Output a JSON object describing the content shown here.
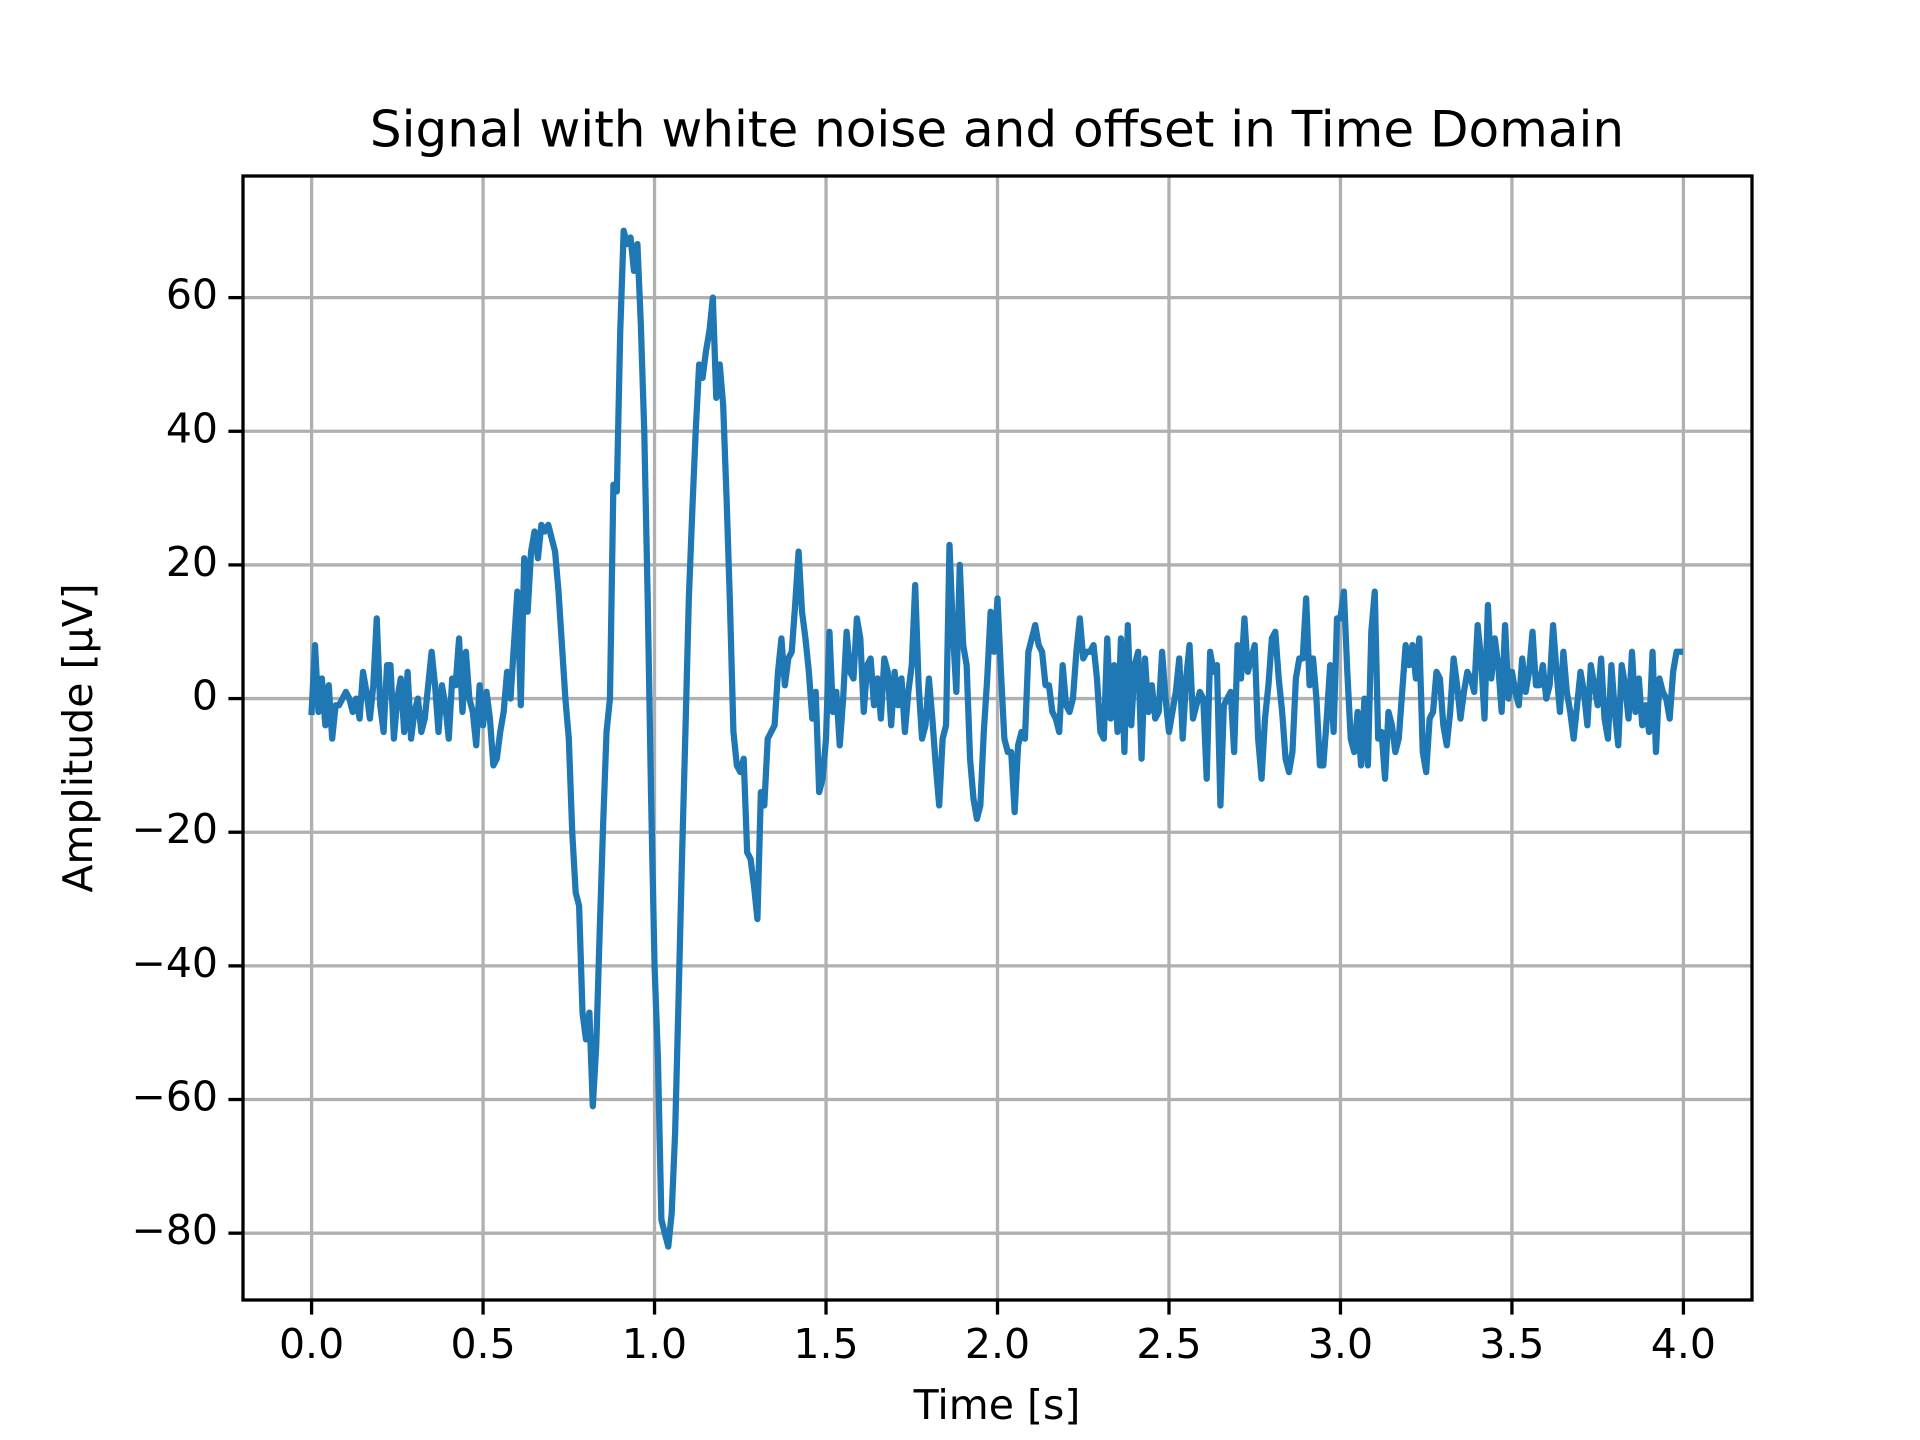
{
  "chart_data": {
    "type": "line",
    "title": "Signal with white noise and offset in Time Domain",
    "xlabel": "Time [s]",
    "ylabel": "Amplitude [μV]",
    "color": "#1f77b4",
    "grid": true,
    "xlim": [
      -0.2,
      4.2
    ],
    "ylim": [
      -90,
      78.2
    ],
    "xticks": [
      {
        "value": 0,
        "label": "0.0"
      },
      0.5,
      {
        "value": 1,
        "label": "1.0"
      },
      1.5,
      {
        "value": 2,
        "label": "2.0"
      },
      2.5,
      {
        "value": 3,
        "label": "3.0"
      },
      3.5,
      {
        "value": 4,
        "label": "4.0"
      }
    ],
    "yticks": [
      {
        "value": -80,
        "label": "−80"
      },
      {
        "value": -60,
        "label": "−60"
      },
      {
        "value": -40,
        "label": "−40"
      },
      {
        "value": -20,
        "label": "−20"
      },
      0,
      20,
      40,
      60
    ],
    "x": [
      0,
      0.01,
      0.02,
      0.03,
      0.04,
      0.05,
      0.06,
      0.07,
      0.08,
      0.09,
      0.1,
      0.11,
      0.12,
      0.13,
      0.14,
      0.15,
      0.16,
      0.17,
      0.18,
      0.19,
      0.2,
      0.21,
      0.22,
      0.23,
      0.24,
      0.25,
      0.26,
      0.27,
      0.28,
      0.29,
      0.3,
      0.31,
      0.32,
      0.33,
      0.34,
      0.35,
      0.36,
      0.37,
      0.38,
      0.39,
      0.4,
      0.41,
      0.42,
      0.43,
      0.44,
      0.45,
      0.46,
      0.47,
      0.48,
      0.49,
      0.5,
      0.51,
      0.52,
      0.53,
      0.54,
      0.55,
      0.56,
      0.57,
      0.58,
      0.59,
      0.6,
      0.61,
      0.62,
      0.63,
      0.64,
      0.65,
      0.66,
      0.67,
      0.68,
      0.69,
      0.7,
      0.71,
      0.72,
      0.73,
      0.74,
      0.75,
      0.76,
      0.77,
      0.78,
      0.79,
      0.8,
      0.81,
      0.82,
      0.83,
      0.84,
      0.85,
      0.86,
      0.87,
      0.88,
      0.89,
      0.9,
      0.91,
      0.92,
      0.93,
      0.94,
      0.95,
      0.96,
      0.97,
      0.98,
      0.99,
      1,
      1.01,
      1.02,
      1.03,
      1.04,
      1.05,
      1.06,
      1.07,
      1.08,
      1.09,
      1.1,
      1.11,
      1.12,
      1.13,
      1.14,
      1.15,
      1.16,
      1.17,
      1.18,
      1.19,
      1.2,
      1.21,
      1.22,
      1.23,
      1.24,
      1.25,
      1.26,
      1.27,
      1.28,
      1.29,
      1.3,
      1.31,
      1.32,
      1.33,
      1.34,
      1.35,
      1.36,
      1.37,
      1.38,
      1.39,
      1.4,
      1.41,
      1.42,
      1.43,
      1.44,
      1.45,
      1.46,
      1.47,
      1.48,
      1.49,
      1.5,
      1.51,
      1.52,
      1.53,
      1.54,
      1.55,
      1.56,
      1.57,
      1.58,
      1.59,
      1.6,
      1.61,
      1.62,
      1.63,
      1.64,
      1.65,
      1.66,
      1.67,
      1.68,
      1.69,
      1.7,
      1.71,
      1.72,
      1.73,
      1.74,
      1.75,
      1.76,
      1.77,
      1.78,
      1.79,
      1.8,
      1.81,
      1.82,
      1.83,
      1.84,
      1.85,
      1.86,
      1.87,
      1.88,
      1.89,
      1.9,
      1.91,
      1.92,
      1.93,
      1.94,
      1.95,
      1.96,
      1.97,
      1.98,
      1.99,
      2,
      2.01,
      2.02,
      2.03,
      2.04,
      2.05,
      2.06,
      2.07,
      2.08,
      2.09,
      2.1,
      2.11,
      2.12,
      2.13,
      2.14,
      2.15,
      2.16,
      2.17,
      2.18,
      2.19,
      2.2,
      2.21,
      2.22,
      2.23,
      2.24,
      2.25,
      2.26,
      2.27,
      2.28,
      2.29,
      2.3,
      2.31,
      2.32,
      2.33,
      2.34,
      2.35,
      2.36,
      2.37,
      2.38,
      2.39,
      2.4,
      2.41,
      2.42,
      2.43,
      2.44,
      2.45,
      2.46,
      2.47,
      2.48,
      2.49,
      2.5,
      2.51,
      2.52,
      2.53,
      2.54,
      2.55,
      2.56,
      2.57,
      2.58,
      2.59,
      2.6,
      2.61,
      2.62,
      2.63,
      2.64,
      2.65,
      2.66,
      2.67,
      2.68,
      2.69,
      2.7,
      2.71,
      2.72,
      2.73,
      2.74,
      2.75,
      2.76,
      2.77,
      2.78,
      2.79,
      2.8,
      2.81,
      2.82,
      2.83,
      2.84,
      2.85,
      2.86,
      2.87,
      2.88,
      2.89,
      2.9,
      2.91,
      2.92,
      2.93,
      2.94,
      2.95,
      2.96,
      2.97,
      2.98,
      2.99,
      3,
      3.01,
      3.02,
      3.03,
      3.04,
      3.05,
      3.06,
      3.07,
      3.08,
      3.09,
      3.1,
      3.11,
      3.12,
      3.13,
      3.14,
      3.15,
      3.16,
      3.17,
      3.18,
      3.19,
      3.2,
      3.21,
      3.22,
      3.23,
      3.24,
      3.25,
      3.26,
      3.27,
      3.28,
      3.29,
      3.3,
      3.31,
      3.32,
      3.33,
      3.34,
      3.35,
      3.36,
      3.37,
      3.38,
      3.39,
      3.4,
      3.41,
      3.42,
      3.43,
      3.44,
      3.45,
      3.46,
      3.47,
      3.48,
      3.49,
      3.5,
      3.51,
      3.52,
      3.53,
      3.54,
      3.55,
      3.56,
      3.57,
      3.58,
      3.59,
      3.6,
      3.61,
      3.62,
      3.63,
      3.64,
      3.65,
      3.66,
      3.67,
      3.68,
      3.69,
      3.7,
      3.71,
      3.72,
      3.73,
      3.74,
      3.75,
      3.76,
      3.77,
      3.78,
      3.79,
      3.8,
      3.81,
      3.82,
      3.83,
      3.84,
      3.85,
      3.86,
      3.87,
      3.88,
      3.89,
      3.9,
      3.91,
      3.92,
      3.93,
      3.94,
      3.95,
      3.96,
      3.97,
      3.98,
      3.99
    ],
    "values": [
      -2,
      8,
      -2,
      3,
      -4,
      2,
      -6,
      -1,
      -1,
      0,
      1,
      0,
      -2,
      0,
      -3,
      4,
      1,
      -3,
      2,
      12,
      -1,
      -5,
      5,
      5,
      -6,
      0,
      3,
      -5,
      4,
      -6,
      -2,
      0,
      -5,
      -3,
      2,
      7,
      2,
      -5,
      2,
      -1,
      -6,
      3,
      2,
      9,
      -2,
      7,
      0,
      -2,
      -7,
      2,
      -4,
      1,
      -3,
      -10,
      -9,
      -5,
      -2,
      4,
      0,
      8,
      16,
      -1,
      21,
      13,
      22,
      25,
      21,
      26,
      25,
      26,
      24,
      22,
      16,
      8,
      0,
      -6,
      -20,
      -29,
      -31,
      -47,
      -51,
      -47,
      -61,
      -52,
      -35,
      -19,
      -5,
      0,
      32,
      31,
      55,
      70,
      68,
      69,
      64,
      68,
      56,
      40,
      15,
      -15,
      -40,
      -54,
      -78,
      -80,
      -82,
      -77,
      -65,
      -45,
      -24,
      -5,
      15,
      28,
      40,
      50,
      48,
      52,
      55,
      60,
      45,
      50,
      44,
      30,
      14,
      -5,
      -10,
      -11,
      -9,
      -23,
      -24,
      -28,
      -33,
      -14,
      -16,
      -6,
      -5,
      -4,
      4,
      9,
      2,
      6,
      7,
      14,
      22,
      13,
      9,
      4,
      -3,
      1,
      -14,
      -12,
      -6,
      10,
      -2,
      1,
      -7,
      0,
      10,
      4,
      3,
      12,
      9,
      -2,
      5,
      6,
      -1,
      3,
      -3,
      6,
      4,
      -4,
      4,
      -1,
      3,
      -5,
      1,
      5,
      17,
      2,
      -6,
      -4,
      3,
      -3,
      -10,
      -16,
      -6,
      -4,
      23,
      10,
      1,
      20,
      8,
      5,
      -9,
      -15,
      -18,
      -16,
      -5,
      3,
      13,
      7,
      15,
      4,
      -6,
      -8,
      -8,
      -17,
      -7,
      -5,
      -6,
      7,
      9,
      11,
      8,
      7,
      2,
      2,
      -2,
      -3,
      -5,
      5,
      -1,
      -2,
      0,
      7,
      12,
      6,
      7,
      7,
      8,
      3,
      -5,
      -6,
      9,
      -3,
      5,
      -5,
      9,
      -8,
      11,
      -4,
      5,
      7,
      -9,
      6,
      -2,
      2,
      -3,
      -2,
      7,
      0,
      -5,
      -2,
      1,
      6,
      -6,
      3,
      8,
      -3,
      -1,
      1,
      0,
      -12,
      7,
      4,
      5,
      -16,
      -1,
      0,
      1,
      -8,
      8,
      3,
      12,
      4,
      6,
      8,
      -6,
      -12,
      -3,
      2,
      9,
      10,
      3,
      -2,
      -9,
      -11,
      -8,
      3,
      6,
      6,
      15,
      2,
      6,
      0,
      -10,
      -10,
      -3,
      5,
      -5,
      12,
      12,
      16,
      4,
      -6,
      -8,
      -2,
      -10,
      0,
      -10,
      10,
      16,
      -6,
      -5,
      -12,
      -2,
      -4,
      -8,
      -6,
      1,
      8,
      5,
      8,
      3,
      9,
      -8,
      -11,
      -3,
      -2,
      4,
      3,
      -4,
      -7,
      -2,
      6,
      2,
      -3,
      1,
      4,
      3,
      1,
      11,
      6,
      -3,
      14,
      3,
      9,
      5,
      -2,
      11,
      0,
      4,
      1,
      -1,
      6,
      1,
      4,
      10,
      2,
      2,
      5,
      0,
      2,
      11,
      4,
      -2,
      7,
      1,
      -2,
      -6,
      -1,
      4,
      1,
      -4,
      5,
      2,
      -1,
      6,
      -3,
      -6,
      5,
      -2,
      -7,
      5,
      2,
      -3,
      7,
      -2,
      3,
      -4,
      -1,
      -5,
      7,
      -8,
      3,
      1,
      0,
      -3,
      4,
      7,
      7
    ]
  }
}
